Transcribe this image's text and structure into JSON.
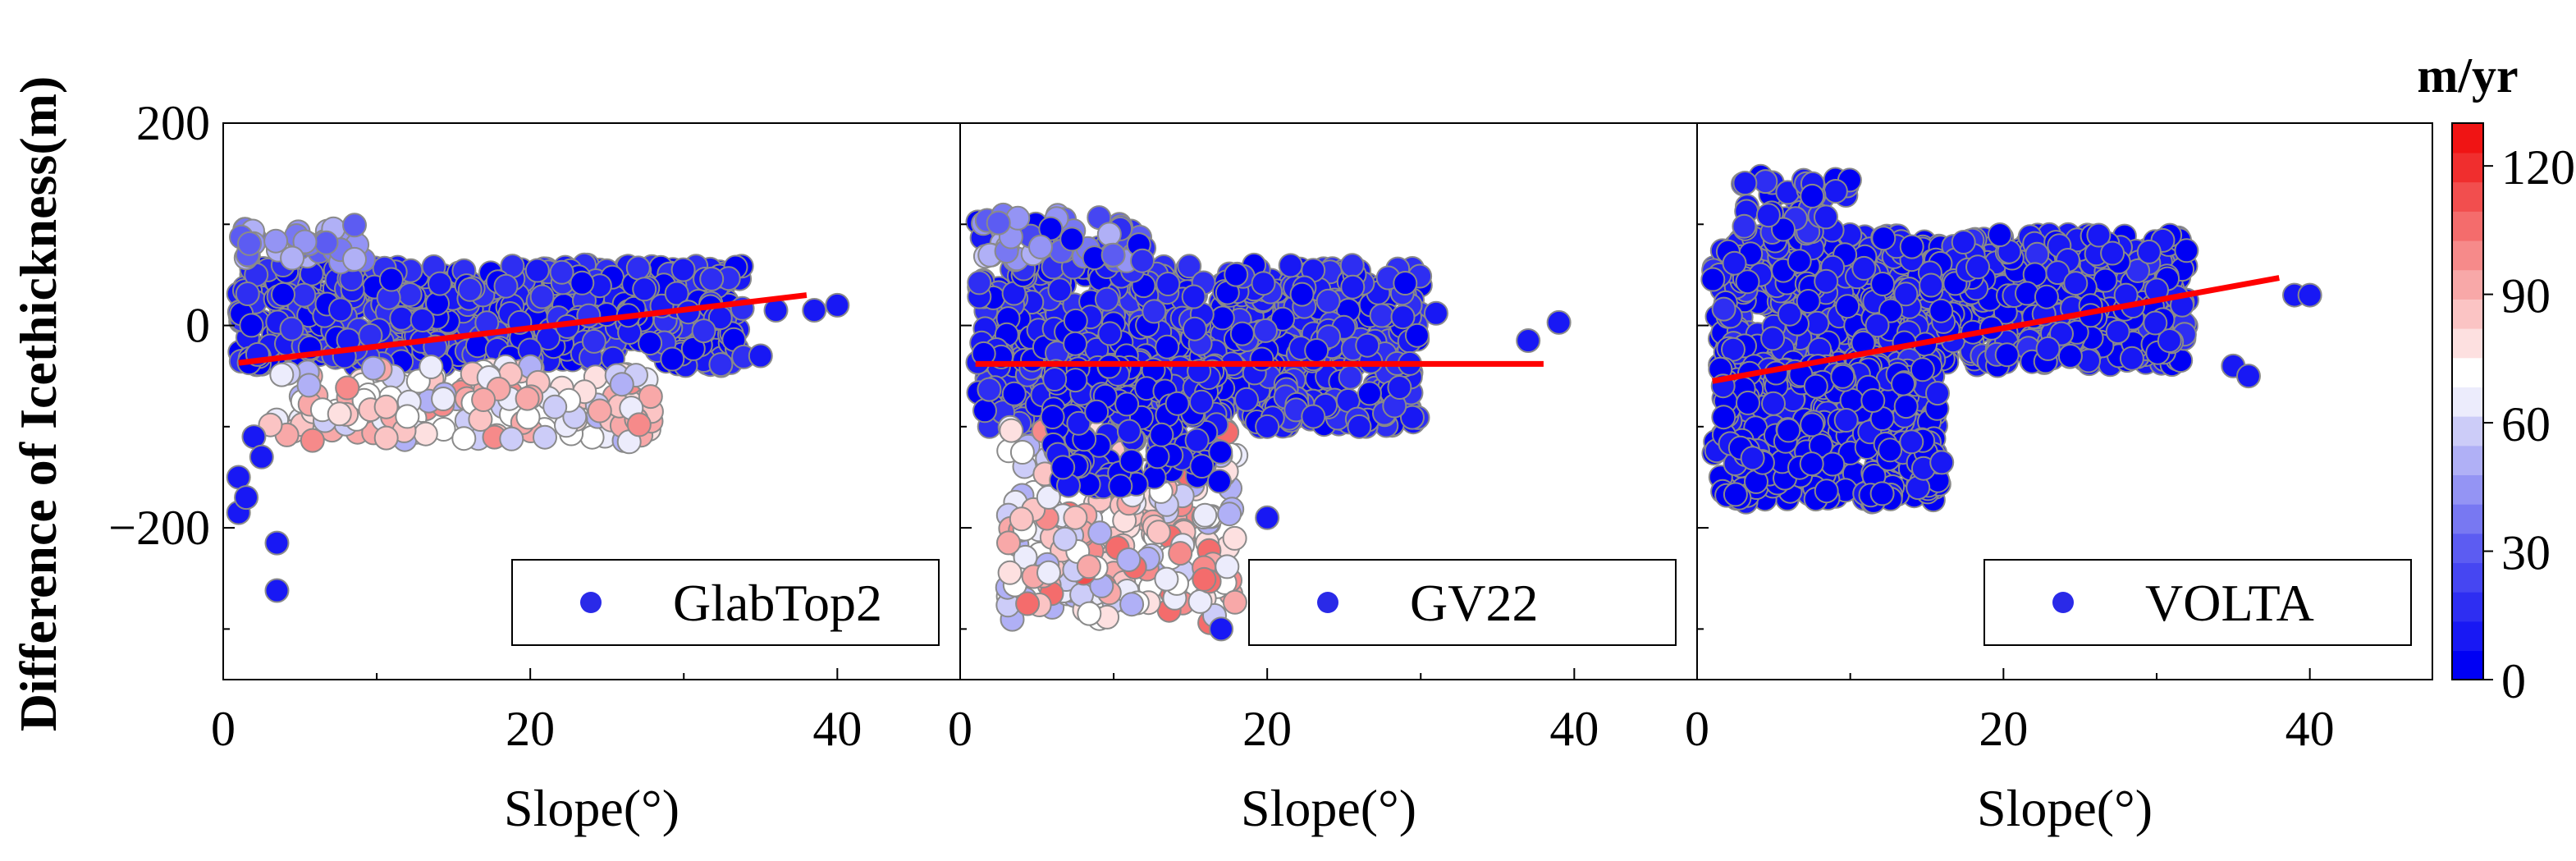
{
  "chart_data": {
    "type": "scatter",
    "ylabel": "Difference of Icethickness(m)",
    "xlabel": "Slope(°)",
    "xlim": [
      0,
      48
    ],
    "ylim": [
      -350,
      200
    ],
    "xticks": [
      0,
      20,
      40
    ],
    "yticks": [
      -200,
      0,
      200
    ],
    "colorbar": {
      "title": "m/yr",
      "range": [
        0,
        130
      ],
      "ticks": [
        0,
        30,
        60,
        90,
        120
      ],
      "colors": [
        "#0000f4",
        "#1818f4",
        "#2e2ef2",
        "#4646f2",
        "#5c5cf2",
        "#7878f2",
        "#9494f4",
        "#b0b0f6",
        "#ccccf8",
        "#ececfc",
        "#ffffff",
        "#fde0e0",
        "#fbc4c4",
        "#f8a8a8",
        "#f68a8a",
        "#f46c6c",
        "#f24e4e",
        "#f02e2e",
        "#f01414"
      ]
    },
    "panels": [
      {
        "name": "GlabTop2",
        "legend": "GlabTop2",
        "marker_color": "#2a2ae8",
        "fit_line": {
          "x": [
            1,
            38
          ],
          "y": [
            -37,
            30
          ]
        },
        "clusters": [
          {
            "xmin": 1,
            "xmax": 34,
            "ymin": -40,
            "ymax": 60,
            "count": 700,
            "vmin": 0,
            "vmax": 20
          },
          {
            "xmin": 3,
            "xmax": 28,
            "ymin": -115,
            "ymax": -40,
            "count": 160,
            "vmin": 50,
            "vmax": 100
          },
          {
            "xmin": 1,
            "xmax": 10,
            "ymin": 60,
            "ymax": 100,
            "count": 40,
            "vmin": 30,
            "vmax": 55
          }
        ],
        "points": [
          [
            1,
            -150
          ],
          [
            1,
            -185
          ],
          [
            1.5,
            -170
          ],
          [
            2,
            -110
          ],
          [
            3.5,
            -215
          ],
          [
            3.5,
            -262
          ],
          [
            2.5,
            -130
          ],
          [
            38.5,
            15
          ],
          [
            40,
            20
          ],
          [
            35,
            -30
          ],
          [
            36,
            15
          ]
        ]
      },
      {
        "name": "GV22",
        "legend": "GV22",
        "marker_color": "#2a2ae8",
        "fit_line": {
          "x": [
            1,
            38
          ],
          "y": [
            -38,
            -38
          ]
        },
        "clusters": [
          {
            "xmin": 1,
            "xmax": 30,
            "ymin": -100,
            "ymax": 60,
            "count": 750,
            "vmin": 0,
            "vmax": 20
          },
          {
            "xmin": 3,
            "xmax": 18,
            "ymin": -295,
            "ymax": -100,
            "count": 260,
            "vmin": 50,
            "vmax": 110
          },
          {
            "xmin": 6,
            "xmax": 17,
            "ymin": -160,
            "ymax": -40,
            "count": 140,
            "vmin": 0,
            "vmax": 10
          },
          {
            "xmin": 1,
            "xmax": 12,
            "ymin": 60,
            "ymax": 110,
            "count": 60,
            "vmin": 0,
            "vmax": 55
          }
        ],
        "points": [
          [
            39,
            3
          ],
          [
            31,
            12
          ],
          [
            37,
            -15
          ],
          [
            20,
            -190
          ],
          [
            20,
            -100
          ],
          [
            17,
            -300
          ],
          [
            23,
            -90
          ],
          [
            26,
            -100
          ]
        ]
      },
      {
        "name": "VOLTA",
        "legend": "VOLTA",
        "marker_color": "#2a2ae8",
        "fit_line": {
          "x": [
            1,
            38
          ],
          "y": [
            -55,
            47
          ]
        },
        "clusters": [
          {
            "xmin": 1,
            "xmax": 32,
            "ymin": -40,
            "ymax": 90,
            "count": 850,
            "vmin": 0,
            "vmax": 15
          },
          {
            "xmin": 1,
            "xmax": 16,
            "ymin": -175,
            "ymax": -40,
            "count": 380,
            "vmin": 0,
            "vmax": 10
          },
          {
            "xmin": 3,
            "xmax": 10,
            "ymin": 90,
            "ymax": 150,
            "count": 40,
            "vmin": 0,
            "vmax": 20
          }
        ],
        "points": [
          [
            39,
            30
          ],
          [
            40,
            30
          ],
          [
            35,
            -40
          ],
          [
            36,
            -50
          ],
          [
            30,
            35
          ],
          [
            28,
            30
          ],
          [
            14,
            -115
          ]
        ]
      }
    ]
  }
}
